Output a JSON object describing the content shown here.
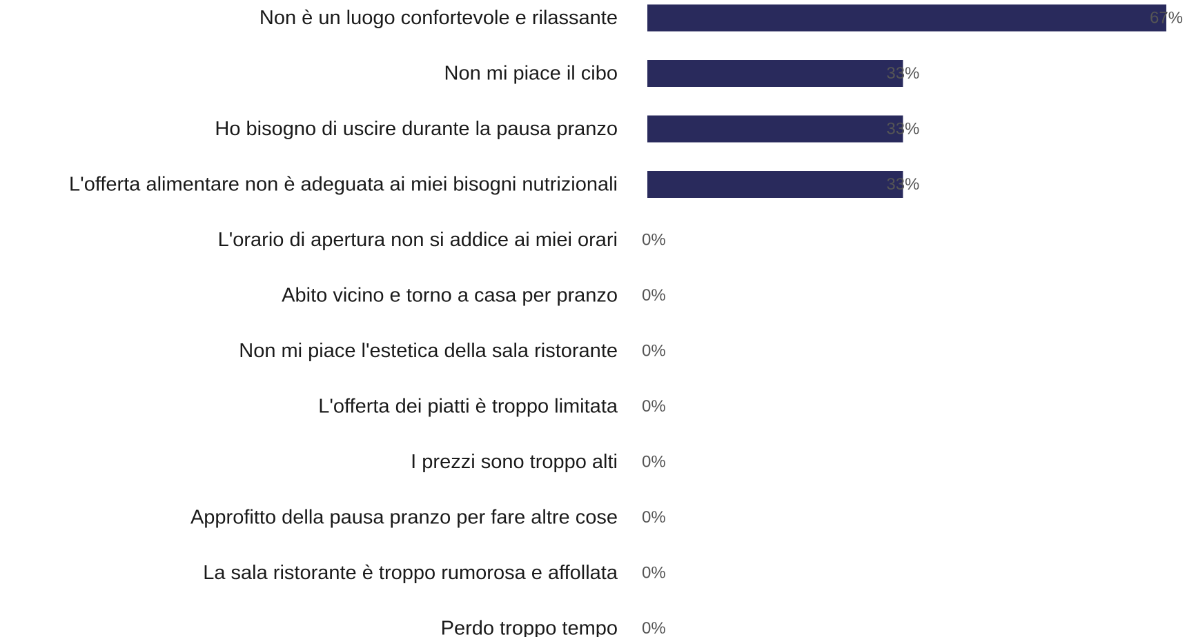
{
  "colors": {
    "bar": "#292a5c",
    "category_text": "#1a1a1a",
    "value_text": "#555555",
    "background": "#ffffff"
  },
  "chart_data": {
    "type": "bar",
    "orientation": "horizontal",
    "title": "",
    "xlabel": "",
    "ylabel": "",
    "grid": false,
    "legend": "none",
    "xlim": [
      0,
      67
    ],
    "value_suffix": "%",
    "categories": [
      "Non è un luogo confortevole e rilassante",
      "Non mi piace il cibo",
      "Ho bisogno di uscire durante la pausa pranzo",
      "L'offerta alimentare non è adeguata ai miei bisogni nutrizionali",
      "L'orario di apertura non si addice ai miei orari",
      "Abito vicino e torno a casa per pranzo",
      "Non mi piace l'estetica della sala ristorante",
      "L'offerta dei piatti è troppo limitata",
      "I prezzi sono troppo alti",
      "Approfitto della pausa pranzo per fare altre cose",
      "La sala ristorante è troppo rumorosa e affollata",
      "Perdo troppo tempo"
    ],
    "values": [
      67,
      33,
      33,
      33,
      0,
      0,
      0,
      0,
      0,
      0,
      0,
      0
    ],
    "value_labels": [
      "67%",
      "33%",
      "33%",
      "33%",
      "0%",
      "0%",
      "0%",
      "0%",
      "0%",
      "0%",
      "0%",
      "0%"
    ]
  }
}
